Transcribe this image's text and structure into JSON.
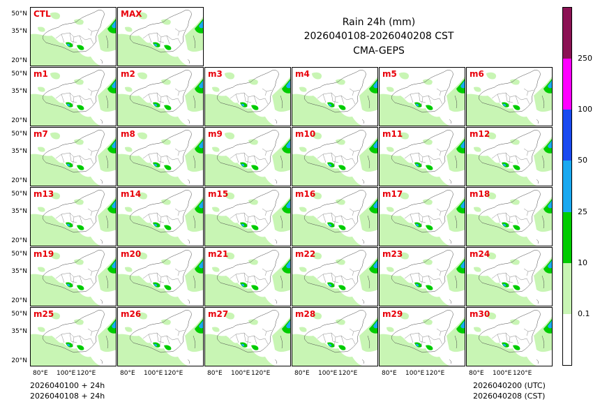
{
  "title": {
    "line1": "Rain 24h (mm)",
    "line2": "2026040108-2026040208 CST",
    "line3": "CMA-GEPS"
  },
  "panels": [
    "CTL",
    "MAX",
    "m1",
    "m2",
    "m3",
    "m4",
    "m5",
    "m6",
    "m7",
    "m8",
    "m9",
    "m10",
    "m11",
    "m12",
    "m13",
    "m14",
    "m15",
    "m16",
    "m17",
    "m18",
    "m19",
    "m20",
    "m21",
    "m22",
    "m23",
    "m24",
    "m25",
    "m26",
    "m27",
    "m28",
    "m29",
    "m30"
  ],
  "lat_labels": [
    "50°N",
    "35°N",
    "20°N"
  ],
  "lon_labels": [
    "80°E",
    "100°E",
    "120°E"
  ],
  "colorbar": {
    "colors": [
      "#ffffff",
      "#c8f5b4",
      "#00cc00",
      "#1aa9f0",
      "#1a4af0",
      "#ff00ff",
      "#8b1254"
    ],
    "tick_labels": [
      "0.1",
      "10",
      "25",
      "50",
      "100",
      "250"
    ]
  },
  "footer": {
    "left_line1": "2026040100 + 24h",
    "left_line2": "2026040108 + 24h",
    "right_line1": "2026040200 (UTC)",
    "right_line2": "2026040208 (CST)"
  }
}
